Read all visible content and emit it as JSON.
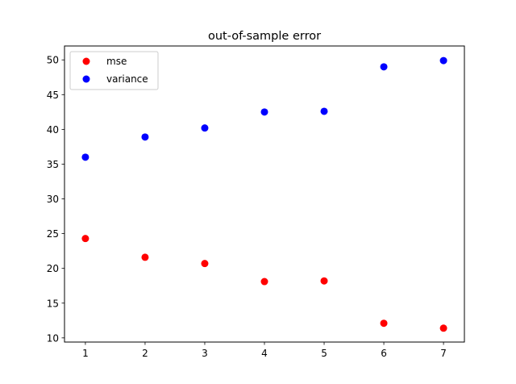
{
  "chart_data": {
    "type": "scatter",
    "title": "out-of-sample error",
    "xlabel": "",
    "ylabel": "",
    "xlim": [
      0.65,
      7.35
    ],
    "ylim": [
      9.4,
      52.0
    ],
    "xticks": [
      "1",
      "2",
      "3",
      "4",
      "5",
      "6",
      "7"
    ],
    "yticks": [
      "10",
      "15",
      "20",
      "25",
      "30",
      "35",
      "40",
      "45",
      "50"
    ],
    "grid": false,
    "legend_position": "top-left",
    "series": [
      {
        "name": "mse",
        "color": "#ff0000",
        "x": [
          1,
          2,
          3,
          4,
          5,
          6,
          7
        ],
        "y": [
          24.3,
          21.6,
          20.7,
          18.1,
          18.2,
          12.1,
          11.4
        ]
      },
      {
        "name": "variance",
        "color": "#0000ff",
        "x": [
          1,
          2,
          3,
          4,
          5,
          6,
          7
        ],
        "y": [
          36.0,
          38.9,
          40.2,
          42.5,
          42.6,
          49.0,
          49.9
        ]
      }
    ]
  }
}
